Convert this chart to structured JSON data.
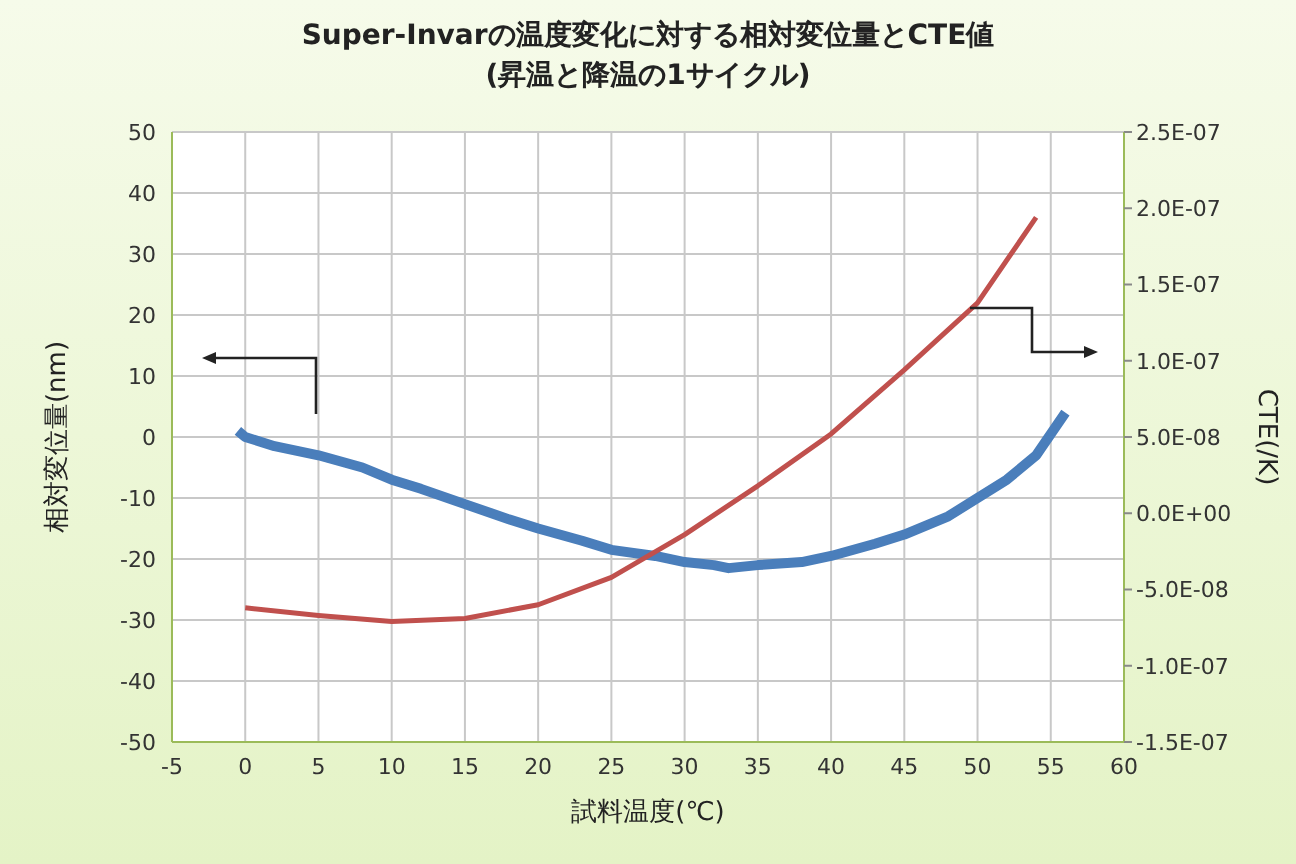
{
  "chart_data": {
    "type": "line",
    "title": "Super-Invarの温度変化に対する相対変位量とCTE値",
    "subtitle": "(昇温と降温の1サイクル)",
    "xlabel": "試料温度(℃)",
    "ylabel": "相対変位量(nm)",
    "y2label": "CTE(/K)",
    "series": [
      {
        "color": "#4a7ebb",
        "x": [
          -0.5,
          0,
          2,
          5,
          8,
          10,
          12,
          15,
          18,
          20,
          23,
          25,
          28,
          30,
          32,
          33,
          35,
          38,
          40,
          43,
          45,
          48,
          50,
          52,
          54,
          56
        ],
        "values": [
          1,
          0,
          -1.5,
          -3,
          -5,
          -7,
          -8.5,
          -11,
          -13.5,
          -15,
          -17,
          -18.5,
          -19.5,
          -20.5,
          -21,
          -21.5,
          -21,
          -20.5,
          -19.5,
          -17.5,
          -16,
          -13,
          -10,
          -7,
          -3,
          4
        ]
      },
      {
        "color": "#c0504d",
        "axis": "y2",
        "x": [
          0,
          5,
          10,
          15,
          20,
          25,
          30,
          35,
          40,
          45,
          50,
          54
        ],
        "values": [
          -6.2e-08,
          -6.7e-08,
          -7.1e-08,
          -6.9e-08,
          -6e-08,
          -4.2e-08,
          -1.4e-08,
          1.8e-08,
          5.2e-08,
          9.4e-08,
          1.38e-07,
          1.94e-07
        ]
      }
    ],
    "xlim": [
      -5,
      60
    ],
    "xticks": [
      -5,
      0,
      5,
      10,
      15,
      20,
      25,
      30,
      35,
      40,
      45,
      50,
      55,
      60
    ],
    "ylim": [
      -50,
      50
    ],
    "yticks": [
      -50,
      -40,
      -30,
      -20,
      -10,
      0,
      10,
      20,
      30,
      40,
      50
    ],
    "y2lim": [
      -1.5e-07,
      2.5e-07
    ],
    "y2ticks": [
      {
        "value": -1.5e-07,
        "label": "-1.5E-07"
      },
      {
        "value": -1e-07,
        "label": "-1.0E-07"
      },
      {
        "value": -5e-08,
        "label": "-5.0E-08"
      },
      {
        "value": 0,
        "label": "0.0E+00"
      },
      {
        "value": 5e-08,
        "label": "5.0E-08"
      },
      {
        "value": 1e-07,
        "label": "1.0E-07"
      },
      {
        "value": 1.5e-07,
        "label": "1.5E-07"
      },
      {
        "value": 2e-07,
        "label": "2.0E-07"
      },
      {
        "value": 2.5e-07,
        "label": "2.5E-07"
      }
    ],
    "grid": true,
    "marker": "none",
    "line_style": "solid"
  }
}
